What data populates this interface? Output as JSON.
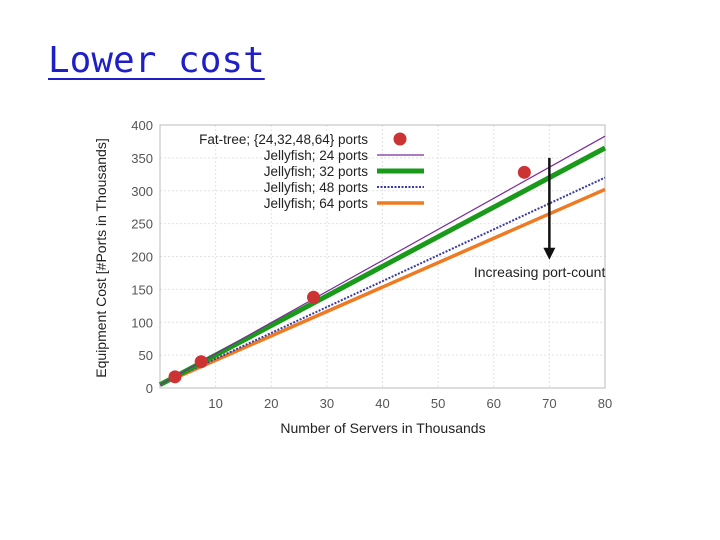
{
  "slide": {
    "title": "Lower cost"
  },
  "chart_data": {
    "type": "line",
    "xlabel": "Number of Servers in Thousands",
    "ylabel": "Equipment Cost [#Ports in Thousands]",
    "xlim": [
      0,
      80
    ],
    "ylim": [
      0,
      400
    ],
    "xticks": [
      10,
      20,
      30,
      40,
      50,
      60,
      70,
      80
    ],
    "yticks": [
      0,
      50,
      100,
      150,
      200,
      250,
      300,
      350,
      400
    ],
    "grid": true,
    "legend_position": "top-left",
    "series": [
      {
        "name": "Fat-tree; {24,32,48,64} ports",
        "kind": "points",
        "color": "#cc3333",
        "points": [
          [
            2.7,
            17
          ],
          [
            7.4,
            40
          ],
          [
            27.6,
            138
          ],
          [
            65.5,
            328
          ]
        ]
      },
      {
        "name": "Jellyfish; 24 ports",
        "kind": "line",
        "color": "#7a2a9a",
        "style": "thin",
        "points": [
          [
            0,
            5
          ],
          [
            80,
            383
          ]
        ]
      },
      {
        "name": "Jellyfish; 32 ports",
        "kind": "line",
        "color": "#1a9a1a",
        "style": "thick",
        "points": [
          [
            0,
            5
          ],
          [
            80,
            365
          ]
        ]
      },
      {
        "name": "Jellyfish; 48 ports",
        "kind": "line",
        "color": "#3a3aa0",
        "style": "dotted",
        "points": [
          [
            0,
            5
          ],
          [
            80,
            320
          ]
        ]
      },
      {
        "name": "Jellyfish; 64 ports",
        "kind": "line",
        "color": "#ee7a22",
        "style": "medium",
        "points": [
          [
            0,
            5
          ],
          [
            80,
            302
          ]
        ]
      }
    ],
    "annotations": [
      {
        "text": "Increasing port-count",
        "arrow_x": 70,
        "arrow_y_from": 350,
        "arrow_y_to": 195
      }
    ]
  }
}
